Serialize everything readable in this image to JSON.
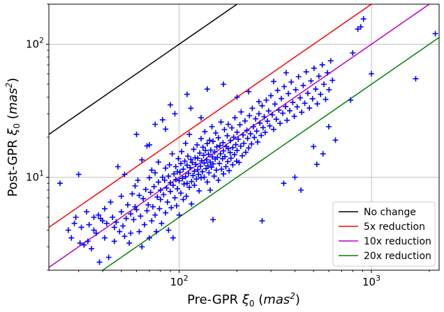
{
  "chart_data": {
    "type": "scatter",
    "xlabel": {
      "prefix": "Pre-GPR ",
      "sym": "ξ",
      "sub": "0",
      "unit": "mas",
      "sup": "2"
    },
    "ylabel": {
      "prefix": "Post-GPR ",
      "sym": "ξ",
      "sub": "0",
      "unit": "mas",
      "sup": "2"
    },
    "xscale": "log",
    "yscale": "log",
    "xlim": [
      21,
      2250
    ],
    "ylim": [
      2.0,
      200
    ],
    "x_ticks": [
      {
        "value": 100,
        "base": "10",
        "exp": "2"
      },
      {
        "value": 1000,
        "base": "10",
        "exp": "3"
      }
    ],
    "y_ticks": [
      {
        "value": 10,
        "base": "10",
        "exp": "1"
      },
      {
        "value": 100,
        "base": "10",
        "exp": "2"
      }
    ],
    "grid": true,
    "legend_position": "lower-right",
    "lines": [
      {
        "name": "No change",
        "factor": 1,
        "color": "#000000"
      },
      {
        "name": "5x reduction",
        "factor": 5,
        "color": "#ff0000"
      },
      {
        "name": "10x reduction",
        "factor": 10,
        "color": "#bf00bf"
      },
      {
        "name": "20x reduction",
        "factor": 20,
        "color": "#008000"
      }
    ],
    "marker_color": "#0000ff",
    "points": [
      [
        24.0,
        9.0
      ],
      [
        26.5,
        4.0
      ],
      [
        27.5,
        3.5
      ],
      [
        28.5,
        4.5
      ],
      [
        29,
        5
      ],
      [
        30,
        10.5
      ],
      [
        30.5,
        3.2
      ],
      [
        31,
        4.2
      ],
      [
        32,
        3.1
      ],
      [
        33,
        5.5
      ],
      [
        33.5,
        3.3
      ],
      [
        34,
        4.4
      ],
      [
        35,
        2.9
      ],
      [
        36,
        5.0
      ],
      [
        36,
        4.0
      ],
      [
        37,
        3.8
      ],
      [
        38,
        5.2
      ],
      [
        38.5,
        2.3
      ],
      [
        39,
        4.9
      ],
      [
        40,
        4.7
      ],
      [
        41,
        3.5
      ],
      [
        41,
        5.8
      ],
      [
        42,
        4.5
      ],
      [
        43,
        2.5
      ],
      [
        44,
        6.5
      ],
      [
        45,
        5.0
      ],
      [
        46,
        3.3
      ],
      [
        46,
        4.2
      ],
      [
        47,
        4.6
      ],
      [
        48,
        12.0
      ],
      [
        49,
        3.9
      ],
      [
        50,
        5.5
      ],
      [
        50,
        7.2
      ],
      [
        51,
        4.3
      ],
      [
        52,
        10.5
      ],
      [
        52,
        3.6
      ],
      [
        53,
        4.9
      ],
      [
        54,
        6.2
      ],
      [
        55,
        3.2
      ],
      [
        56,
        5.3
      ],
      [
        56,
        3.8
      ],
      [
        57,
        7.5
      ],
      [
        58,
        4.8
      ],
      [
        59,
        6.0
      ],
      [
        59,
        8.6
      ],
      [
        60,
        5.7
      ],
      [
        61,
        9.5
      ],
      [
        62,
        3.9
      ],
      [
        62,
        7.3
      ],
      [
        63,
        5.1
      ],
      [
        64,
        13.5
      ],
      [
        64,
        3.0
      ],
      [
        65,
        6.9
      ],
      [
        66,
        4.4
      ],
      [
        67,
        8.1
      ],
      [
        68,
        5.6
      ],
      [
        68,
        17.2
      ],
      [
        69,
        6.2
      ],
      [
        70,
        9.9
      ],
      [
        70,
        3.5
      ],
      [
        71,
        7.7
      ],
      [
        72,
        4.7
      ],
      [
        72,
        11.3
      ],
      [
        73,
        6.0
      ],
      [
        74,
        8.5
      ],
      [
        75,
        5.2
      ],
      [
        75,
        10.8
      ],
      [
        76,
        3.9
      ],
      [
        77,
        7.1
      ],
      [
        78,
        9.2
      ],
      [
        78,
        13.0
      ],
      [
        79,
        5.8
      ],
      [
        80,
        8.0
      ],
      [
        80,
        6.8
      ],
      [
        81,
        4.5
      ],
      [
        82,
        10.0
      ],
      [
        82,
        27.0
      ],
      [
        83,
        7.4
      ],
      [
        84,
        9.5
      ],
      [
        85,
        5.4
      ],
      [
        85,
        11.7
      ],
      [
        86,
        8.3
      ],
      [
        87,
        6.5
      ],
      [
        88,
        10.2
      ],
      [
        88,
        4.0
      ],
      [
        89,
        12.4
      ],
      [
        90,
        7.8
      ],
      [
        90,
        9.1
      ],
      [
        91,
        5.9
      ],
      [
        92,
        15.0
      ],
      [
        93,
        8.7
      ],
      [
        93,
        3.5
      ],
      [
        94,
        10.6
      ],
      [
        95,
        7.0
      ],
      [
        96,
        12.0
      ],
      [
        96,
        9.6
      ],
      [
        97,
        6.1
      ],
      [
        98,
        11.0
      ],
      [
        98,
        8.2
      ],
      [
        99,
        13.8
      ],
      [
        100,
        9.4
      ],
      [
        100,
        5.2
      ],
      [
        101,
        10.9
      ],
      [
        102,
        7.6
      ],
      [
        102,
        12.7
      ],
      [
        103,
        15.6
      ],
      [
        104,
        9.8
      ],
      [
        105,
        11.5
      ],
      [
        105,
        6.8
      ],
      [
        106,
        8.9
      ],
      [
        107,
        13.2
      ],
      [
        108,
        10.1
      ],
      [
        108,
        18.0
      ],
      [
        109,
        7.2
      ],
      [
        110,
        12.3
      ],
      [
        110,
        9.0
      ],
      [
        111,
        14.4
      ],
      [
        112,
        10.7
      ],
      [
        113,
        8.4
      ],
      [
        113,
        21.0
      ],
      [
        114,
        11.8
      ],
      [
        115,
        13.6
      ],
      [
        116,
        9.3
      ],
      [
        116,
        6.3
      ],
      [
        117,
        12.9
      ],
      [
        118,
        10.3
      ],
      [
        119,
        16.2
      ],
      [
        120,
        11.1
      ],
      [
        120,
        8.7
      ],
      [
        121,
        14.0
      ],
      [
        122,
        12.5
      ],
      [
        123,
        9.7
      ],
      [
        124,
        17.5
      ],
      [
        125,
        11.4
      ],
      [
        125,
        13.9
      ],
      [
        126,
        10.5
      ],
      [
        127,
        7.9
      ],
      [
        128,
        15.2
      ],
      [
        129,
        12.1
      ],
      [
        130,
        9.9
      ],
      [
        130,
        19.5
      ],
      [
        131,
        13.3
      ],
      [
        132,
        11.0
      ],
      [
        133,
        16.8
      ],
      [
        134,
        14.6
      ],
      [
        135,
        10.0
      ],
      [
        135,
        12.8
      ],
      [
        136,
        22.0
      ],
      [
        137,
        15.9
      ],
      [
        138,
        11.6
      ],
      [
        139,
        13.5
      ],
      [
        140,
        9.2
      ],
      [
        140,
        17.9
      ],
      [
        141,
        12.2
      ],
      [
        142,
        14.9
      ],
      [
        143,
        10.8
      ],
      [
        144,
        19.0
      ],
      [
        145,
        13.0
      ],
      [
        145,
        8.0
      ],
      [
        146,
        16.0
      ],
      [
        147,
        11.9
      ],
      [
        148,
        24.0
      ],
      [
        149,
        14.2
      ],
      [
        150,
        12.6
      ],
      [
        150,
        18.6
      ],
      [
        152,
        10.2
      ],
      [
        153,
        15.5
      ],
      [
        154,
        13.7
      ],
      [
        155,
        21.5
      ],
      [
        156,
        11.3
      ],
      [
        157,
        16.9
      ],
      [
        158,
        14.1
      ],
      [
        160,
        9.5
      ],
      [
        160,
        19.8
      ],
      [
        162,
        12.7
      ],
      [
        163,
        17.3
      ],
      [
        164,
        15.0
      ],
      [
        165,
        26.0
      ],
      [
        166,
        11.5
      ],
      [
        168,
        13.8
      ],
      [
        169,
        18.2
      ],
      [
        170,
        15.8
      ],
      [
        170,
        10.6
      ],
      [
        172,
        22.8
      ],
      [
        173,
        14.3
      ],
      [
        175,
        12.0
      ],
      [
        176,
        17.0
      ],
      [
        178,
        20.5
      ],
      [
        179,
        13.1
      ],
      [
        180,
        16.4
      ],
      [
        180,
        25.0
      ],
      [
        182,
        11.2
      ],
      [
        184,
        15.3
      ],
      [
        185,
        18.9
      ],
      [
        186,
        13.9
      ],
      [
        188,
        23.5
      ],
      [
        190,
        16.7
      ],
      [
        190,
        12.4
      ],
      [
        192,
        20.0
      ],
      [
        194,
        14.8
      ],
      [
        195,
        28.0
      ],
      [
        197,
        17.6
      ],
      [
        199,
        13.2
      ],
      [
        200,
        21.8
      ],
      [
        200,
        15.9
      ],
      [
        203,
        19.3
      ],
      [
        205,
        12.9
      ],
      [
        207,
        24.8
      ],
      [
        209,
        17.1
      ],
      [
        210,
        31.0
      ],
      [
        213,
        14.5
      ],
      [
        215,
        20.8
      ],
      [
        217,
        18.0
      ],
      [
        220,
        26.5
      ],
      [
        222,
        15.4
      ],
      [
        225,
        22.5
      ],
      [
        227,
        19.6
      ],
      [
        230,
        16.6
      ],
      [
        232,
        29.0
      ],
      [
        235,
        21.2
      ],
      [
        238,
        17.8
      ],
      [
        240,
        33.0
      ],
      [
        243,
        24.0
      ],
      [
        246,
        19.9
      ],
      [
        250,
        27.5
      ],
      [
        253,
        22.2
      ],
      [
        256,
        18.4
      ],
      [
        260,
        30.0
      ],
      [
        263,
        25.5
      ],
      [
        267,
        20.6
      ],
      [
        270,
        34.5
      ],
      [
        273,
        23.6
      ],
      [
        277,
        28.5
      ],
      [
        280,
        21.7
      ],
      [
        284,
        38.0
      ],
      [
        288,
        26.4
      ],
      [
        292,
        31.5
      ],
      [
        296,
        24.3
      ],
      [
        300,
        41.0
      ],
      [
        305,
        29.5
      ],
      [
        310,
        22.9
      ],
      [
        315,
        35.5
      ],
      [
        320,
        27.3
      ],
      [
        325,
        45.0
      ],
      [
        330,
        32.0
      ],
      [
        335,
        25.4
      ],
      [
        340,
        39.0
      ],
      [
        346,
        30.3
      ],
      [
        352,
        48.0
      ],
      [
        358,
        34.0
      ],
      [
        364,
        26.8
      ],
      [
        370,
        42.5
      ],
      [
        376,
        31.6
      ],
      [
        383,
        52.0
      ],
      [
        390,
        36.5
      ],
      [
        397,
        28.7
      ],
      [
        404,
        45.5
      ],
      [
        411,
        33.8
      ],
      [
        418,
        57.0
      ],
      [
        426,
        39.5
      ],
      [
        434,
        30.8
      ],
      [
        442,
        49.0
      ],
      [
        450,
        36.0
      ],
      [
        458,
        62.0
      ],
      [
        467,
        42.8
      ],
      [
        476,
        33.1
      ],
      [
        485,
        53.0
      ],
      [
        494,
        38.9
      ],
      [
        503,
        66.0
      ],
      [
        513,
        46.0
      ],
      [
        523,
        35.6
      ],
      [
        533,
        57.5
      ],
      [
        544,
        42.0
      ],
      [
        555,
        70.0
      ],
      [
        566,
        50.0
      ],
      [
        578,
        38.5
      ],
      [
        590,
        61.0
      ],
      [
        602,
        45.5
      ],
      [
        614,
        75.0
      ],
      [
        627,
        53.5
      ],
      [
        780,
        38.0
      ],
      [
        800,
        86.0
      ],
      [
        850,
        130.0
      ],
      [
        880,
        135.0
      ],
      [
        910,
        155.0
      ],
      [
        1000,
        60.0
      ],
      [
        1700,
        55.0
      ],
      [
        2150,
        120.0
      ],
      [
        90,
        35.0
      ],
      [
        110,
        42.0
      ],
      [
        140,
        46.0
      ],
      [
        170,
        50.0
      ],
      [
        60,
        21.0
      ],
      [
        75,
        25.0
      ],
      [
        150,
        4.8
      ],
      [
        270,
        4.7
      ],
      [
        350,
        9.0
      ],
      [
        400,
        10.0
      ],
      [
        430,
        8.0
      ],
      [
        500,
        17.0
      ],
      [
        520,
        12.5
      ],
      [
        560,
        15.0
      ],
      [
        600,
        24.0
      ],
      [
        650,
        19.0
      ],
      [
        70,
        17.5
      ],
      [
        85,
        23.0
      ],
      [
        95,
        30.0
      ],
      [
        130,
        28.0
      ],
      [
        115,
        33.0
      ],
      [
        200,
        40.0
      ],
      [
        230,
        44.0
      ],
      [
        260,
        37.0
      ],
      [
        310,
        52.5
      ],
      [
        360,
        61.0
      ]
    ]
  }
}
